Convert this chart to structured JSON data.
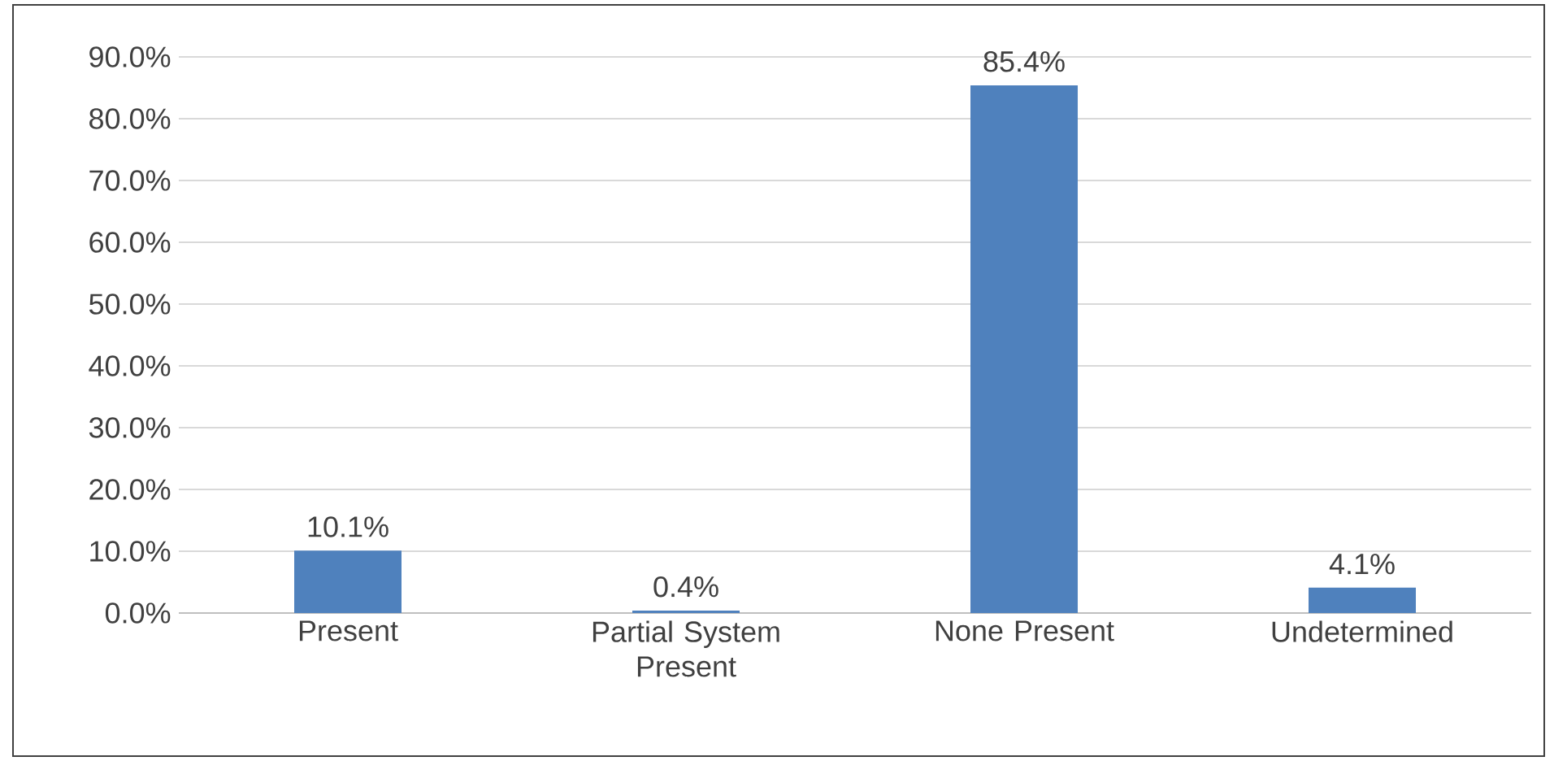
{
  "chart_data": {
    "type": "bar",
    "categories": [
      "Present",
      "Partial System Present",
      "None Present",
      "Undetermined"
    ],
    "values": [
      10.1,
      0.4,
      85.4,
      4.1
    ],
    "value_labels": [
      "10.1%",
      "0.4%",
      "85.4%",
      "4.1%"
    ],
    "color": "#4f81bd",
    "ylim": [
      0,
      90
    ],
    "yticks": [
      {
        "value": 0,
        "label": "0.0%"
      },
      {
        "value": 10,
        "label": "10.0%"
      },
      {
        "value": 20,
        "label": "20.0%"
      },
      {
        "value": 30,
        "label": "30.0%"
      },
      {
        "value": 40,
        "label": "40.0%"
      },
      {
        "value": 50,
        "label": "50.0%"
      },
      {
        "value": 60,
        "label": "60.0%"
      },
      {
        "value": 70,
        "label": "70.0%"
      },
      {
        "value": 80,
        "label": "80.0%"
      },
      {
        "value": 90,
        "label": "90.0%"
      }
    ],
    "grid": "y"
  }
}
